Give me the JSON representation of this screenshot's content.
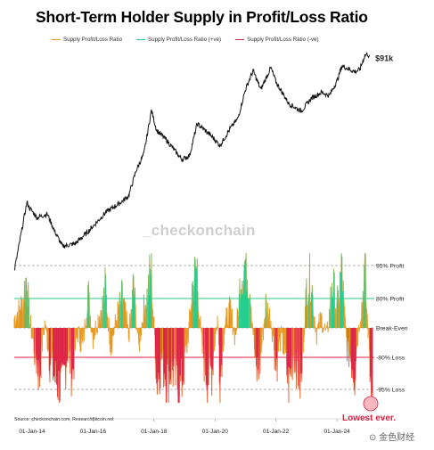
{
  "chart_data": {
    "type": "line",
    "title": "Short-Term Holder Supply in Profit/Loss Ratio",
    "legend": {
      "placement": "top",
      "entries": [
        {
          "name": "Supply Profit/Loss Ratio",
          "color": "#e8981e"
        },
        {
          "name": "Supply Profit/Loss Ratio (+ve)",
          "color": "#20cc8a"
        },
        {
          "name": "Supply Profit/Loss Ratio (-ve)",
          "color": "#dd2244"
        }
      ]
    },
    "x_ticks": [
      "01-Jan-14",
      "01-Jan-16",
      "01-Jan-18",
      "01-Jan-20",
      "01-Jan-22",
      "01-Jan-24"
    ],
    "x_range": [
      "2013-06",
      "2025-03"
    ],
    "levels": [
      {
        "label": "95% Profit",
        "value": 95,
        "style": "dashed",
        "color": "#999999"
      },
      {
        "label": "80% Profit",
        "value": 80,
        "style": "solid",
        "color": "#20cc8a"
      },
      {
        "label": "Break-Even",
        "value": 50,
        "style": "dashed",
        "color": "#999999"
      },
      {
        "label": "-80% Loss",
        "value": 20,
        "style": "solid",
        "color": "#dd2244"
      },
      {
        "label": "-95% Loss",
        "value": 5,
        "style": "dashed",
        "color": "#999999"
      }
    ],
    "price_series": {
      "name": "BTC Price",
      "color": "#111111",
      "scale": "log",
      "points": [
        [
          "2013-06",
          100
        ],
        [
          "2013-11",
          900
        ],
        [
          "2013-12",
          750
        ],
        [
          "2014-03",
          550
        ],
        [
          "2014-07",
          620
        ],
        [
          "2014-10",
          350
        ],
        [
          "2015-01",
          220
        ],
        [
          "2015-06",
          240
        ],
        [
          "2015-11",
          350
        ],
        [
          "2016-06",
          650
        ],
        [
          "2016-12",
          900
        ],
        [
          "2017-03",
          1100
        ],
        [
          "2017-06",
          2500
        ],
        [
          "2017-09",
          4200
        ],
        [
          "2017-12",
          17000
        ],
        [
          "2018-02",
          9000
        ],
        [
          "2018-06",
          6500
        ],
        [
          "2018-12",
          3500
        ],
        [
          "2019-03",
          4000
        ],
        [
          "2019-06",
          11000
        ],
        [
          "2019-09",
          9000
        ],
        [
          "2019-12",
          7200
        ],
        [
          "2020-03",
          5500
        ],
        [
          "2020-07",
          9500
        ],
        [
          "2020-10",
          13000
        ],
        [
          "2021-01",
          33000
        ],
        [
          "2021-04",
          60000
        ],
        [
          "2021-07",
          33000
        ],
        [
          "2021-11",
          66000
        ],
        [
          "2022-01",
          42000
        ],
        [
          "2022-06",
          21000
        ],
        [
          "2022-11",
          16500
        ],
        [
          "2023-03",
          25000
        ],
        [
          "2023-07",
          30000
        ],
        [
          "2023-10",
          27000
        ],
        [
          "2024-01",
          43000
        ],
        [
          "2024-03",
          70000
        ],
        [
          "2024-08",
          58000
        ],
        [
          "2024-10",
          62000
        ],
        [
          "2024-12",
          98000
        ],
        [
          "2025-01",
          102000
        ],
        [
          "2025-02",
          91000
        ]
      ],
      "last_label": "$91k"
    },
    "ratio_series": {
      "name": "Supply Profit/Loss Ratio",
      "unit": "%",
      "ylim": [
        0,
        100
      ],
      "anchors": [
        [
          "2013-06",
          60
        ],
        [
          "2013-09",
          75
        ],
        [
          "2013-11",
          92
        ],
        [
          "2013-12",
          60
        ],
        [
          "2014-02",
          25
        ],
        [
          "2014-04",
          10
        ],
        [
          "2014-06",
          55
        ],
        [
          "2014-08",
          20
        ],
        [
          "2014-10",
          10
        ],
        [
          "2015-01",
          5
        ],
        [
          "2015-03",
          25
        ],
        [
          "2015-05",
          12
        ],
        [
          "2015-07",
          45
        ],
        [
          "2015-09",
          30
        ],
        [
          "2015-11",
          85
        ],
        [
          "2016-01",
          40
        ],
        [
          "2016-03",
          60
        ],
        [
          "2016-06",
          85
        ],
        [
          "2016-08",
          30
        ],
        [
          "2016-11",
          70
        ],
        [
          "2017-01",
          80
        ],
        [
          "2017-03",
          40
        ],
        [
          "2017-05",
          90
        ],
        [
          "2017-07",
          30
        ],
        [
          "2017-09",
          70
        ],
        [
          "2017-12",
          95
        ],
        [
          "2018-02",
          8
        ],
        [
          "2018-04",
          20
        ],
        [
          "2018-06",
          10
        ],
        [
          "2018-08",
          15
        ],
        [
          "2018-11",
          5
        ],
        [
          "2018-12",
          8
        ],
        [
          "2019-02",
          30
        ],
        [
          "2019-04",
          85
        ],
        [
          "2019-06",
          95
        ],
        [
          "2019-08",
          25
        ],
        [
          "2019-10",
          10
        ],
        [
          "2019-12",
          15
        ],
        [
          "2020-02",
          60
        ],
        [
          "2020-03",
          5
        ],
        [
          "2020-05",
          55
        ],
        [
          "2020-07",
          70
        ],
        [
          "2020-09",
          40
        ],
        [
          "2020-11",
          90
        ],
        [
          "2021-01",
          97
        ],
        [
          "2021-03",
          85
        ],
        [
          "2021-05",
          10
        ],
        [
          "2021-07",
          20
        ],
        [
          "2021-09",
          75
        ],
        [
          "2021-11",
          60
        ],
        [
          "2022-01",
          15
        ],
        [
          "2022-03",
          40
        ],
        [
          "2022-06",
          5
        ],
        [
          "2022-08",
          25
        ],
        [
          "2022-11",
          5
        ],
        [
          "2023-01",
          85
        ],
        [
          "2023-03",
          90
        ],
        [
          "2023-05",
          45
        ],
        [
          "2023-07",
          60
        ],
        [
          "2023-09",
          40
        ],
        [
          "2023-11",
          90
        ],
        [
          "2024-01",
          70
        ],
        [
          "2024-03",
          97
        ],
        [
          "2024-05",
          30
        ],
        [
          "2024-08",
          12
        ],
        [
          "2024-10",
          60
        ],
        [
          "2024-12",
          97
        ],
        [
          "2025-01",
          60
        ],
        [
          "2025-02",
          15
        ],
        [
          "2025-03",
          0
        ]
      ]
    },
    "annotation": {
      "text": "Lowest ever.",
      "date": "2025-03",
      "value": 0,
      "color": "#dd2244"
    }
  },
  "watermark": "_checkonchain",
  "source": "Source: checkonchain.com, ResearchBitcoin.net",
  "corner_mark": "⊙ 金色财经"
}
